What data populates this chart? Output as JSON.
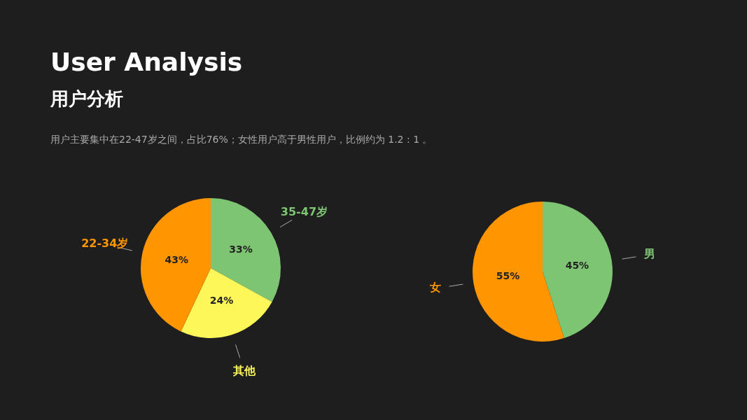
{
  "chart_data": [
    {
      "type": "pie",
      "title": "User Analysis",
      "subtitle": "用户分析",
      "annotations": [
        "用户主要集中在22-47岁之间，占比76%；女性用户高于男性用户，比例约为 1.2 : 1 。"
      ],
      "categories": [
        "35-47岁",
        "其他",
        "22-34岁"
      ],
      "values": [
        33,
        24,
        43
      ],
      "colors": [
        "#7ec573",
        "#fdf75a",
        "#ff9500"
      ],
      "value_labels": [
        "33%",
        "24%",
        "43%"
      ]
    },
    {
      "type": "pie",
      "categories": [
        "男",
        "女"
      ],
      "values": [
        45,
        55
      ],
      "colors": [
        "#7ec573",
        "#ff9500"
      ],
      "value_labels": [
        "45%",
        "55%"
      ]
    }
  ]
}
